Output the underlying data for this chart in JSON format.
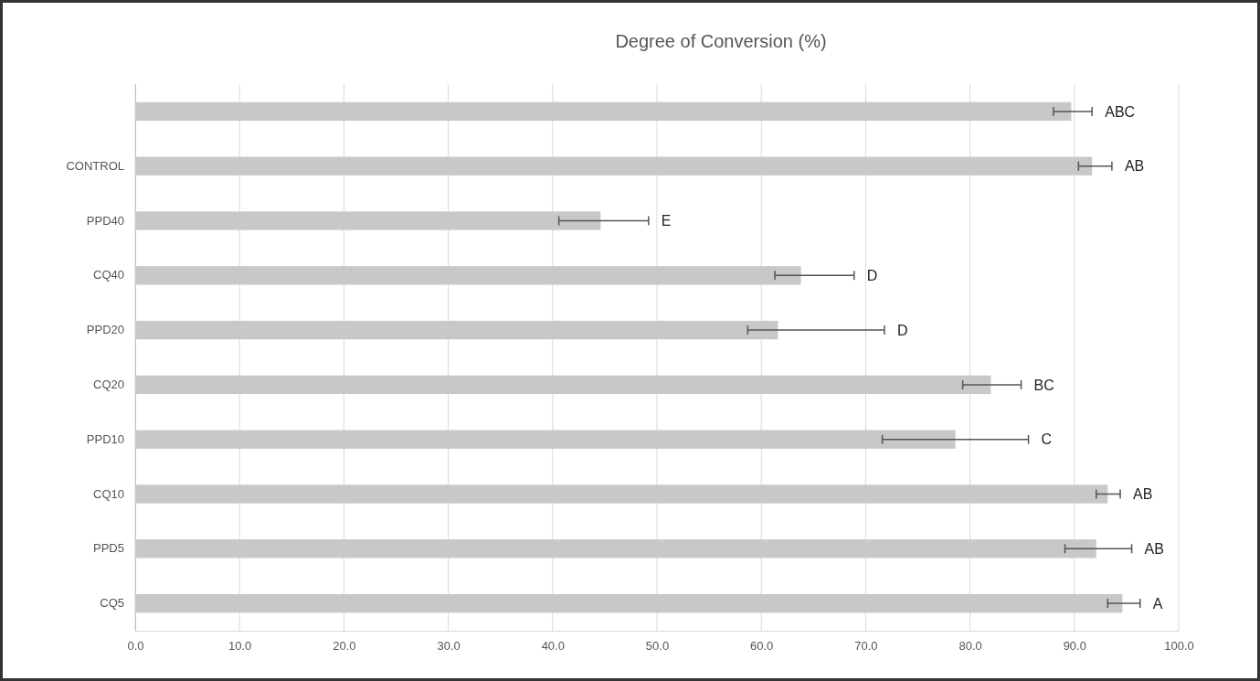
{
  "chart_data": {
    "type": "bar",
    "orientation": "horizontal",
    "title": "Degree of Conversion (%)",
    "categories": [
      null,
      "CONTROL",
      "PPD40",
      "CQ40",
      "PPD20",
      "CQ20",
      "PPD10",
      "CQ10",
      "PPD5",
      "CQ5"
    ],
    "values": [
      89.7,
      91.7,
      44.6,
      63.8,
      61.6,
      82.0,
      78.6,
      93.2,
      92.1,
      94.6
    ],
    "errors": [
      [
        88.0,
        91.7
      ],
      [
        90.4,
        93.6
      ],
      [
        40.6,
        49.2
      ],
      [
        61.3,
        68.9
      ],
      [
        58.7,
        71.8
      ],
      [
        79.3,
        84.9
      ],
      [
        71.6,
        85.6
      ],
      [
        92.1,
        94.4
      ],
      [
        89.1,
        95.5
      ],
      [
        93.2,
        96.3
      ]
    ],
    "annotations": [
      {
        "text": "ABC",
        "x": 91.7
      },
      {
        "text": "AB",
        "x": 93.6,
        "y": "CONTROL"
      },
      {
        "text": "E",
        "x": 49.2,
        "y": "PPD40"
      },
      {
        "text": "D",
        "x": 68.9,
        "y": "CQ40"
      },
      {
        "text": "D",
        "x": 71.8,
        "y": "PPD20"
      },
      {
        "text": "BC",
        "x": 84.9,
        "y": "CQ20"
      },
      {
        "text": "C",
        "x": 85.6,
        "y": "PPD10"
      },
      {
        "text": "AB",
        "x": 94.4,
        "y": "CQ10"
      },
      {
        "text": "AB",
        "x": 95.5,
        "y": "PPD5"
      },
      {
        "text": "A",
        "x": 96.3,
        "y": "CQ5"
      }
    ],
    "color": "#c8c8c8",
    "xlim": [
      0,
      100
    ],
    "xticks": [
      {
        "value": 0,
        "label": "0.0"
      },
      {
        "value": 10,
        "label": "10.0"
      },
      {
        "value": 20,
        "label": "20.0"
      },
      {
        "value": 30,
        "label": "30.0"
      },
      {
        "value": 40,
        "label": "40.0"
      },
      {
        "value": 50,
        "label": "50.0"
      },
      {
        "value": 60,
        "label": "60.0"
      },
      {
        "value": 70,
        "label": "70.0"
      },
      {
        "value": 80,
        "label": "80.0"
      },
      {
        "value": 90,
        "label": "90.0"
      },
      {
        "value": 100,
        "label": "100.0"
      }
    ],
    "grid": "x"
  }
}
